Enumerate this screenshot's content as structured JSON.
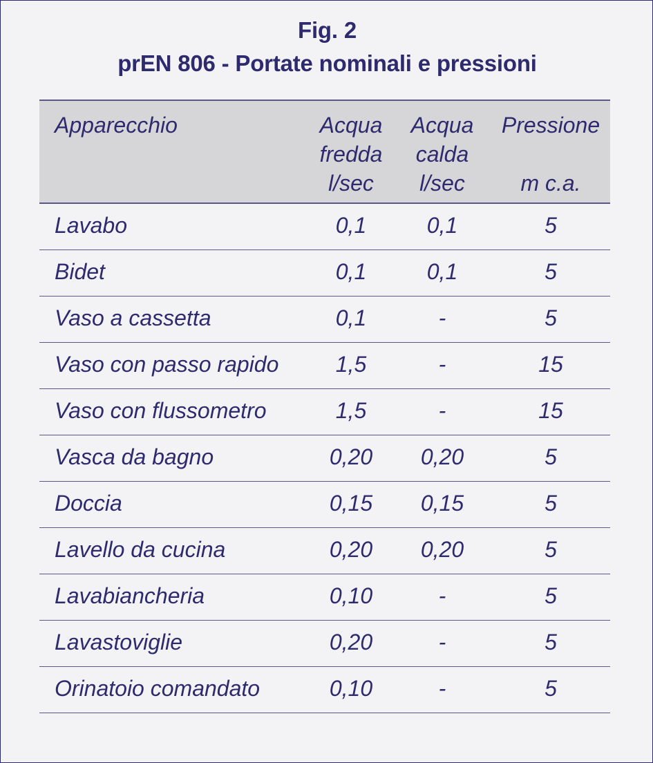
{
  "figure": {
    "label": "Fig. 2",
    "title": "prEN 806 - Portate nominali e pressioni"
  },
  "table": {
    "headers": [
      {
        "lines": [
          "Apparecchio"
        ]
      },
      {
        "lines": [
          "Acqua",
          "fredda",
          "l/sec"
        ]
      },
      {
        "lines": [
          "Acqua",
          "calda",
          "l/sec"
        ]
      },
      {
        "lines": [
          "Pressione",
          "",
          "m c.a."
        ]
      }
    ],
    "rows": [
      [
        "Lavabo",
        "0,1",
        "0,1",
        "5"
      ],
      [
        "Bidet",
        "0,1",
        "0,1",
        "5"
      ],
      [
        "Vaso a cassetta",
        "0,1",
        "-",
        "5"
      ],
      [
        "Vaso con passo rapido",
        "1,5",
        "-",
        "15"
      ],
      [
        "Vaso con flussometro",
        "1,5",
        "-",
        "15"
      ],
      [
        "Vasca da bagno",
        "0,20",
        "0,20",
        "5"
      ],
      [
        "Doccia",
        "0,15",
        "0,15",
        "5"
      ],
      [
        "Lavello da cucina",
        "0,20",
        "0,20",
        "5"
      ],
      [
        "Lavabiancheria",
        "0,10",
        "-",
        "5"
      ],
      [
        "Lavastoviglie",
        "0,20",
        "-",
        "5"
      ],
      [
        "Orinatoio comandato",
        "0,10",
        "-",
        "5"
      ]
    ]
  },
  "colors": {
    "text": "#2e2a6e",
    "header_bg": "#d6d6d9",
    "page_bg": "#f3f3f5",
    "rule": "#5a5688"
  }
}
